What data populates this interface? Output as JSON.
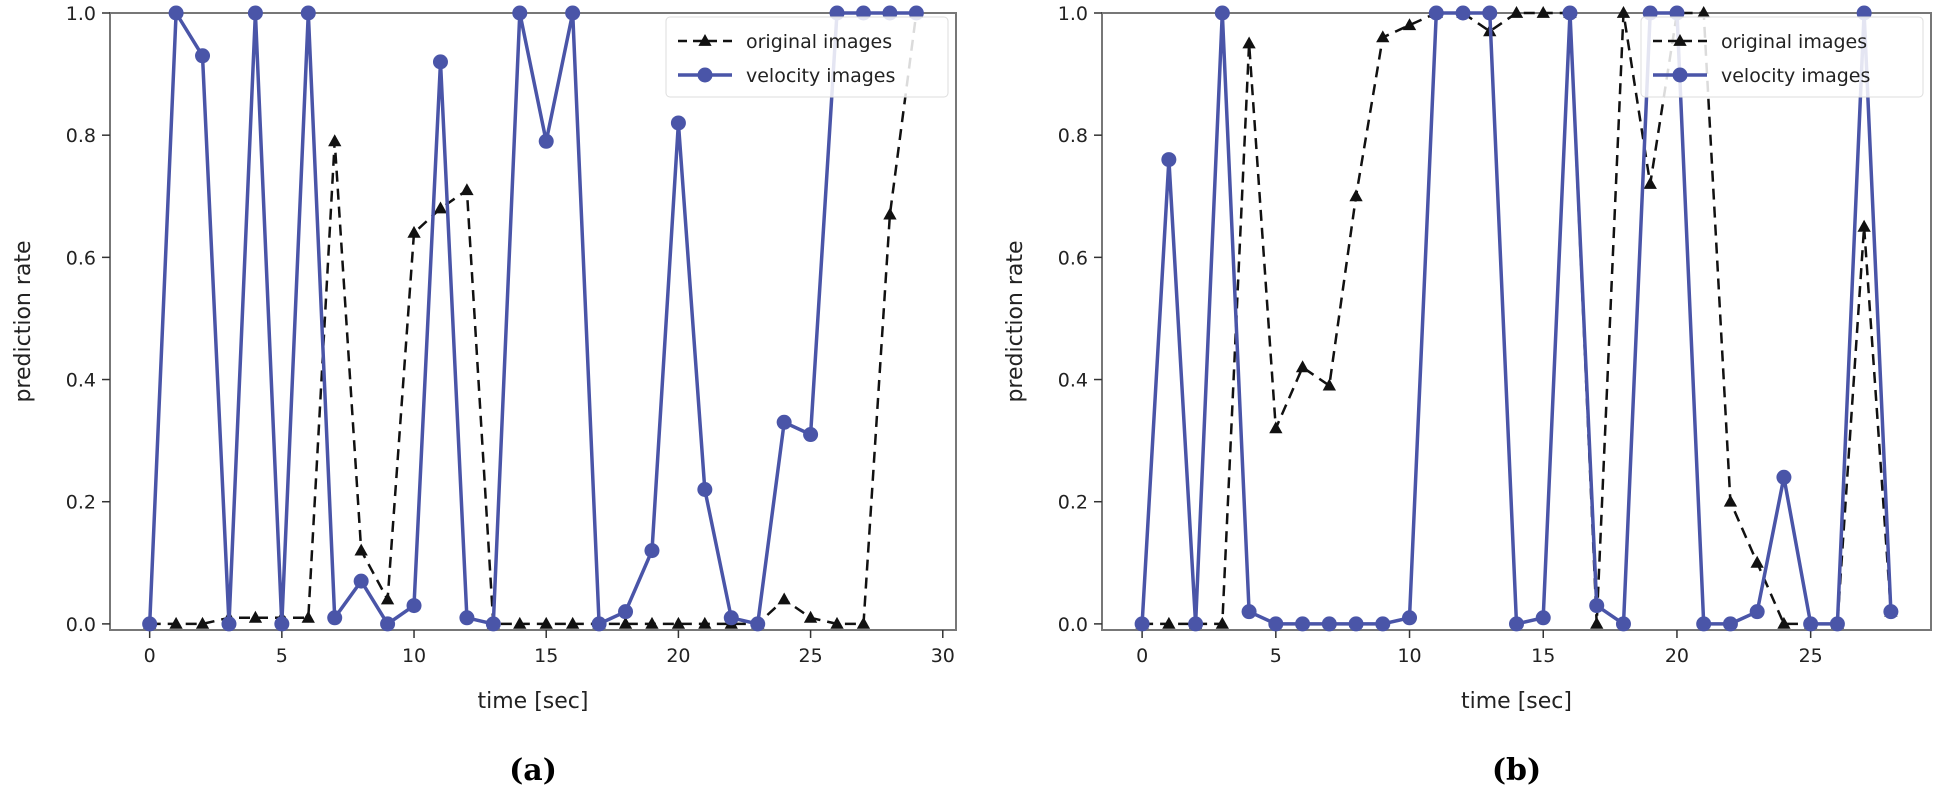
{
  "figure": {
    "colors": {
      "original": "#111111",
      "velocity": "#4a55a8",
      "axes": "#777777"
    }
  },
  "chart_data": [
    {
      "type": "line",
      "caption": "(a)",
      "title": "",
      "xlabel": "time [sec]",
      "ylabel": "prediction rate",
      "xlim": [
        -1.5,
        30.5
      ],
      "ylim": [
        -0.01,
        1.0
      ],
      "xticks": [
        0,
        5,
        10,
        15,
        20,
        25,
        30
      ],
      "yticks": [
        0.0,
        0.2,
        0.4,
        0.6,
        0.8,
        1.0
      ],
      "ytick_labels": [
        "0.0",
        "0.2",
        "0.4",
        "0.6",
        "0.8",
        "1.0"
      ],
      "legend_position": "top-right",
      "series": [
        {
          "name": "original images",
          "style": "dashed",
          "marker": "triangle",
          "x": [
            0,
            1,
            2,
            3,
            4,
            5,
            6,
            7,
            8,
            9,
            10,
            11,
            12,
            13,
            14,
            15,
            16,
            17,
            18,
            19,
            20,
            21,
            22,
            23,
            24,
            25,
            26,
            27,
            28,
            29
          ],
          "values": [
            0.0,
            0.0,
            0.0,
            0.01,
            0.01,
            0.01,
            0.01,
            0.79,
            0.12,
            0.04,
            0.64,
            0.68,
            0.71,
            0.0,
            0.0,
            0.0,
            0.0,
            0.0,
            0.0,
            0.0,
            0.0,
            0.0,
            0.0,
            0.0,
            0.04,
            0.01,
            0.0,
            0.0,
            0.67,
            1.0
          ]
        },
        {
          "name": "velocity images",
          "style": "solid",
          "marker": "circle",
          "x": [
            0,
            1,
            2,
            3,
            4,
            5,
            6,
            7,
            8,
            9,
            10,
            11,
            12,
            13,
            14,
            15,
            16,
            17,
            18,
            19,
            20,
            21,
            22,
            23,
            24,
            25,
            26,
            27,
            28,
            29
          ],
          "values": [
            0.0,
            1.0,
            0.93,
            0.0,
            1.0,
            0.0,
            1.0,
            0.01,
            0.07,
            0.0,
            0.03,
            0.92,
            0.01,
            0.0,
            1.0,
            0.79,
            1.0,
            0.0,
            0.02,
            0.12,
            0.82,
            0.22,
            0.01,
            0.0,
            0.33,
            0.31,
            1.0,
            1.0,
            1.0,
            1.0
          ]
        }
      ]
    },
    {
      "type": "line",
      "caption": "(b)",
      "title": "",
      "xlabel": "time [sec]",
      "ylabel": "prediction rate",
      "xlim": [
        -1.5,
        29.5
      ],
      "ylim": [
        -0.01,
        1.0
      ],
      "xticks": [
        0,
        5,
        10,
        15,
        20,
        25
      ],
      "yticks": [
        0.0,
        0.2,
        0.4,
        0.6,
        0.8,
        1.0
      ],
      "ytick_labels": [
        "0.0",
        "0.2",
        "0.4",
        "0.6",
        "0.8",
        "1.0"
      ],
      "legend_position": "top-right",
      "series": [
        {
          "name": "original images",
          "style": "dashed",
          "marker": "triangle",
          "x": [
            0,
            1,
            2,
            3,
            4,
            5,
            6,
            7,
            8,
            9,
            10,
            11,
            12,
            13,
            14,
            15,
            16,
            17,
            18,
            19,
            20,
            21,
            22,
            23,
            24,
            25,
            26,
            27,
            28
          ],
          "values": [
            0.0,
            0.0,
            0.0,
            0.0,
            0.95,
            0.32,
            0.42,
            0.39,
            0.7,
            0.96,
            0.98,
            1.0,
            1.0,
            0.97,
            1.0,
            1.0,
            1.0,
            0.0,
            1.0,
            0.72,
            1.0,
            1.0,
            0.2,
            0.1,
            0.0,
            0.0,
            0.0,
            0.65,
            0.02
          ]
        },
        {
          "name": "velocity images",
          "style": "solid",
          "marker": "circle",
          "x": [
            0,
            1,
            2,
            3,
            4,
            5,
            6,
            7,
            8,
            9,
            10,
            11,
            12,
            13,
            14,
            15,
            16,
            17,
            18,
            19,
            20,
            21,
            22,
            23,
            24,
            25,
            26,
            27,
            28
          ],
          "values": [
            0.0,
            0.76,
            0.0,
            1.0,
            0.02,
            0.0,
            0.0,
            0.0,
            0.0,
            0.0,
            0.01,
            1.0,
            1.0,
            1.0,
            0.0,
            0.01,
            1.0,
            0.03,
            0.0,
            1.0,
            1.0,
            0.0,
            0.0,
            0.02,
            0.24,
            0.0,
            0.0,
            1.0,
            0.02
          ]
        }
      ]
    }
  ]
}
